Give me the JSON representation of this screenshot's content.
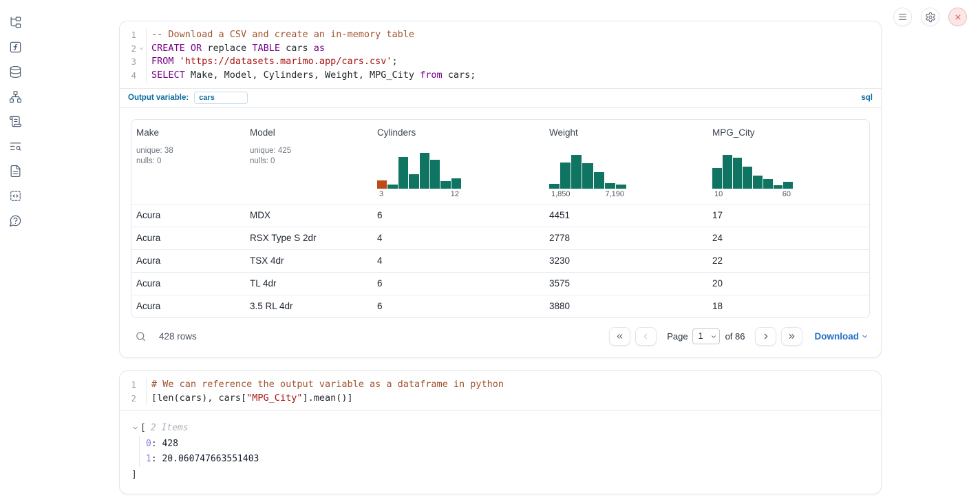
{
  "colors": {
    "accent_blue": "#0d6d9e",
    "download_blue": "#2170c8",
    "hist_bar": "#0f7562",
    "hist_bar_highlight": "#c04b16",
    "code_keyword": "#770088",
    "code_string": "#aa1111",
    "code_comment": "#a0522d",
    "close_red": "#df5454"
  },
  "sidebar": {
    "icons": [
      "file-tree",
      "variables-function",
      "datasources-database",
      "dependency-graph",
      "logs-scroll",
      "scratchpad-search",
      "documentation-file",
      "snippets-code",
      "help-question"
    ]
  },
  "window_controls": {
    "icons": [
      "menu",
      "settings",
      "close"
    ]
  },
  "cells": [
    {
      "type": "sql",
      "language_label": "sql",
      "output_variable_label": "Output variable:",
      "output_variable_value": "cars",
      "code": {
        "lines": [
          {
            "num": "1",
            "tokens": [
              {
                "c": "com",
                "t": "-- Download a CSV and create an in-memory table"
              }
            ]
          },
          {
            "num": "2",
            "fold": true,
            "tokens": [
              {
                "c": "kw",
                "t": "CREATE"
              },
              {
                "c": "pl",
                "t": " "
              },
              {
                "c": "kw",
                "t": "OR"
              },
              {
                "c": "pl",
                "t": " replace "
              },
              {
                "c": "kw",
                "t": "TABLE"
              },
              {
                "c": "pl",
                "t": " cars "
              },
              {
                "c": "kw",
                "t": "as"
              }
            ]
          },
          {
            "num": "3",
            "tokens": [
              {
                "c": "kw",
                "t": "FROM"
              },
              {
                "c": "pl",
                "t": " "
              },
              {
                "c": "str",
                "t": "'https://datasets.marimo.app/cars.csv'"
              },
              {
                "c": "pl",
                "t": ";"
              }
            ]
          },
          {
            "num": "4",
            "tokens": [
              {
                "c": "kw",
                "t": "SELECT"
              },
              {
                "c": "pl",
                "t": " Make, Model, Cylinders, Weight, MPG_City "
              },
              {
                "c": "kw",
                "t": "from"
              },
              {
                "c": "pl",
                "t": " cars;"
              }
            ]
          }
        ]
      },
      "table": {
        "columns": [
          {
            "name": "Make",
            "stats": [
              "unique: 38",
              "nulls: 0"
            ]
          },
          {
            "name": "Model",
            "stats": [
              "unique: 425",
              "nulls: 0"
            ]
          },
          {
            "name": "Cylinders",
            "hist": {
              "heights": [
                0.22,
                0.12,
                0.88,
                0.4,
                1.0,
                0.8,
                0.2,
                0.28
              ],
              "labels": [
                "3",
                "12"
              ],
              "first_bar_color": "#c04b16"
            }
          },
          {
            "name": "Weight",
            "hist": {
              "heights": [
                0.13,
                0.72,
                0.93,
                0.7,
                0.45,
                0.16,
                0.12
              ],
              "labels": [
                "1,850",
                "7,190"
              ]
            }
          },
          {
            "name": "MPG_City",
            "hist": {
              "heights": [
                0.58,
                0.93,
                0.87,
                0.62,
                0.37,
                0.27,
                0.1,
                0.18
              ],
              "labels": [
                "10",
                "60"
              ]
            }
          }
        ],
        "rows": [
          [
            "Acura",
            "MDX",
            "6",
            "4451",
            "17"
          ],
          [
            "Acura",
            "RSX Type S 2dr",
            "4",
            "2778",
            "24"
          ],
          [
            "Acura",
            "TSX 4dr",
            "4",
            "3230",
            "22"
          ],
          [
            "Acura",
            "TL 4dr",
            "6",
            "3575",
            "20"
          ],
          [
            "Acura",
            "3.5 RL 4dr",
            "6",
            "3880",
            "18"
          ]
        ]
      },
      "footer": {
        "row_count": "428 rows",
        "page_label": "Page",
        "page_value": "1",
        "page_total": "of 86",
        "download_label": "Download"
      }
    },
    {
      "type": "python",
      "code": {
        "lines": [
          {
            "num": "1",
            "tokens": [
              {
                "c": "com",
                "t": "# We can reference the output variable as a dataframe in python"
              }
            ]
          },
          {
            "num": "2",
            "tokens": [
              {
                "c": "pl",
                "t": "[len(cars), cars["
              },
              {
                "c": "str",
                "t": "\"MPG_City\""
              },
              {
                "c": "pl",
                "t": "].mean()]"
              }
            ]
          }
        ]
      },
      "output": {
        "open_bracket": "[",
        "items_label": "2 Items",
        "entries": [
          {
            "index": "0",
            "value": "428"
          },
          {
            "index": "1",
            "value": "20.060747663551403"
          }
        ],
        "close_bracket": "]"
      }
    }
  ],
  "chart_data": [
    {
      "type": "bar",
      "title": "Cylinders histogram",
      "x_range": [
        3,
        12
      ],
      "tick_labels": [
        "3",
        "12"
      ],
      "relative_heights": [
        0.22,
        0.12,
        0.88,
        0.4,
        1.0,
        0.8,
        0.2,
        0.28
      ],
      "highlight_first_bar": true
    },
    {
      "type": "bar",
      "title": "Weight histogram",
      "x_range": [
        1850,
        7190
      ],
      "tick_labels": [
        "1,850",
        "7,190"
      ],
      "relative_heights": [
        0.13,
        0.72,
        0.93,
        0.7,
        0.45,
        0.16,
        0.12
      ]
    },
    {
      "type": "bar",
      "title": "MPG_City histogram",
      "x_range": [
        10,
        60
      ],
      "tick_labels": [
        "10",
        "60"
      ],
      "relative_heights": [
        0.58,
        0.93,
        0.87,
        0.62,
        0.37,
        0.27,
        0.1,
        0.18
      ]
    }
  ]
}
